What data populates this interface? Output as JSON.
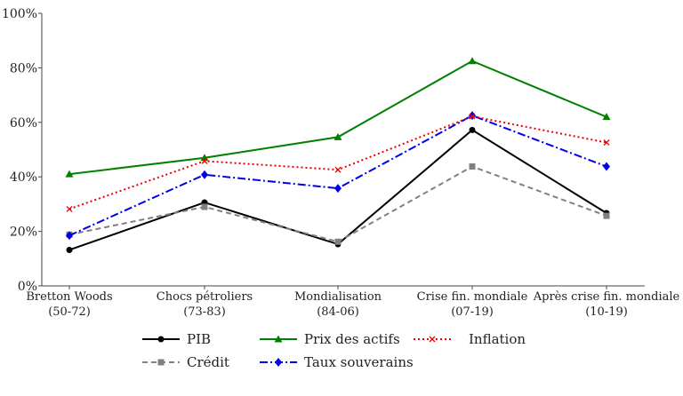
{
  "chart_data": {
    "type": "line",
    "categories": [
      [
        "Bretton Woods",
        "(50-72)"
      ],
      [
        "Chocs pétroliers",
        "(73-83)"
      ],
      [
        "Mondialisation",
        "(84-06)"
      ],
      [
        "Crise fin. mondiale",
        "(07-19)"
      ],
      [
        "Après crise fin. mondiale",
        "(10-19)"
      ]
    ],
    "ylim": [
      0,
      100
    ],
    "yticks": [
      "0%",
      "20%",
      "40%",
      "60%",
      "80%",
      "100%"
    ],
    "ytick_values": [
      0,
      20,
      40,
      60,
      80,
      100
    ],
    "grid": false,
    "legend_placement": "bottom",
    "series": [
      {
        "name": "PIB",
        "values": [
          13.2,
          30.6,
          15.3,
          57.2,
          26.7
        ],
        "color": "#000000",
        "dash": "solid",
        "marker": "circle"
      },
      {
        "name": "Crédit",
        "values": [
          18.8,
          29.0,
          16.2,
          43.8,
          25.7
        ],
        "color": "#808080",
        "dash": "dashed",
        "marker": "square"
      },
      {
        "name": "Prix des actifs",
        "values": [
          41.0,
          47.0,
          54.6,
          82.5,
          62.0
        ],
        "color": "#008000",
        "dash": "solid",
        "marker": "triangle"
      },
      {
        "name": "Taux souverains",
        "values": [
          18.5,
          40.8,
          35.8,
          62.5,
          43.8
        ],
        "color": "#0000ee",
        "dash": "dashdot",
        "marker": "diamond"
      },
      {
        "name": "Inflation",
        "values": [
          28.2,
          45.8,
          42.6,
          62.2,
          52.6
        ],
        "color": "#ee0000",
        "dash": "dotted",
        "marker": "x"
      }
    ]
  }
}
